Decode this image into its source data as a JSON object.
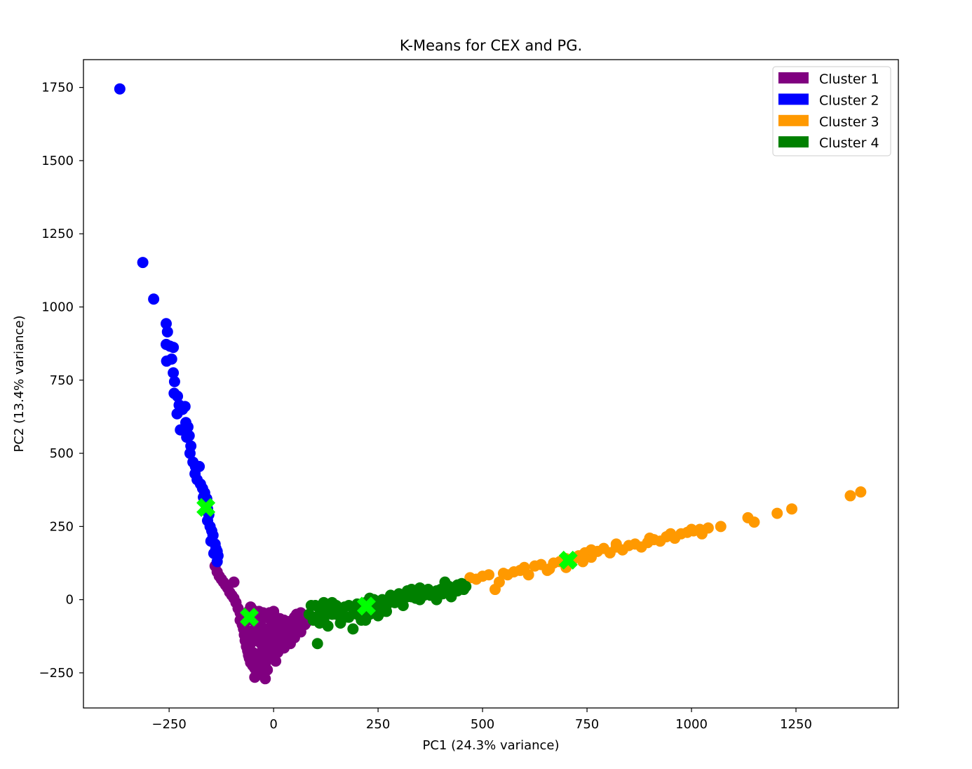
{
  "chart_data": {
    "type": "scatter",
    "title": "K-Means for CEX and PG.",
    "xlabel": "PC1 (24.3% variance)",
    "ylabel": "PC2 (13.4% variance)",
    "xlim": [
      -455,
      1495
    ],
    "ylim": [
      -370,
      1845
    ],
    "xticks": [
      -250,
      0,
      250,
      500,
      750,
      1000,
      1250
    ],
    "yticks": [
      -250,
      0,
      250,
      500,
      750,
      1000,
      1250,
      1500,
      1750
    ],
    "tick_labels": {
      "x": [
        "−250",
        "0",
        "250",
        "500",
        "750",
        "1000",
        "1250"
      ],
      "y": [
        "−250",
        "0",
        "250",
        "500",
        "750",
        "1000",
        "1250",
        "1500",
        "1750"
      ]
    },
    "grid": false,
    "legend_position": "top-right",
    "series": [
      {
        "name": "Cluster 1",
        "color": "#800080",
        "points": [
          [
            -140,
            115
          ],
          [
            -135,
            95
          ],
          [
            -130,
            80
          ],
          [
            -125,
            70
          ],
          [
            -120,
            60
          ],
          [
            -115,
            50
          ],
          [
            -110,
            40
          ],
          [
            -105,
            25
          ],
          [
            -100,
            15
          ],
          [
            -95,
            5
          ],
          [
            -95,
            60
          ],
          [
            -90,
            -10
          ],
          [
            -85,
            -30
          ],
          [
            -80,
            -45
          ],
          [
            -80,
            -70
          ],
          [
            -75,
            -85
          ],
          [
            -72,
            -100
          ],
          [
            -70,
            -120
          ],
          [
            -68,
            -140
          ],
          [
            -65,
            -160
          ],
          [
            -62,
            -175
          ],
          [
            -60,
            -190
          ],
          [
            -58,
            -200
          ],
          [
            -55,
            -215
          ],
          [
            -50,
            -225
          ],
          [
            -45,
            -235
          ],
          [
            -40,
            -245
          ],
          [
            -35,
            -255
          ],
          [
            -45,
            -265
          ],
          [
            -20,
            -270
          ],
          [
            -30,
            -180
          ],
          [
            -25,
            -200
          ],
          [
            -20,
            -220
          ],
          [
            -15,
            -150
          ],
          [
            -10,
            -170
          ],
          [
            -5,
            -190
          ],
          [
            0,
            -200
          ],
          [
            5,
            -210
          ],
          [
            10,
            -180
          ],
          [
            15,
            -160
          ],
          [
            -60,
            -60
          ],
          [
            -50,
            -70
          ],
          [
            -40,
            -80
          ],
          [
            -30,
            -90
          ],
          [
            -20,
            -100
          ],
          [
            -10,
            -110
          ],
          [
            0,
            -120
          ],
          [
            10,
            -130
          ],
          [
            20,
            -140
          ],
          [
            30,
            -120
          ],
          [
            40,
            -110
          ],
          [
            50,
            -100
          ],
          [
            60,
            -90
          ],
          [
            70,
            -80
          ],
          [
            -40,
            -50
          ],
          [
            -30,
            -55
          ],
          [
            -20,
            -60
          ],
          [
            -10,
            -65
          ],
          [
            0,
            -70
          ],
          [
            10,
            -75
          ],
          [
            20,
            -80
          ],
          [
            30,
            -85
          ],
          [
            40,
            -90
          ],
          [
            50,
            -60
          ],
          [
            60,
            -70
          ],
          [
            70,
            -55
          ],
          [
            75,
            -65
          ],
          [
            -50,
            -120
          ],
          [
            -40,
            -140
          ],
          [
            -30,
            -150
          ],
          [
            -20,
            -130
          ],
          [
            -10,
            -140
          ],
          [
            0,
            -150
          ],
          [
            10,
            -110
          ],
          [
            20,
            -100
          ],
          [
            30,
            -95
          ],
          [
            50,
            -130
          ],
          [
            40,
            -150
          ],
          [
            25,
            -165
          ],
          [
            -5,
            -90
          ],
          [
            5,
            -100
          ],
          [
            65,
            -110
          ],
          [
            -55,
            -150
          ],
          [
            -45,
            -100
          ],
          [
            -35,
            -110
          ],
          [
            -25,
            -160
          ],
          [
            -15,
            -120
          ],
          [
            -5,
            -135
          ],
          [
            15,
            -125
          ],
          [
            35,
            -135
          ],
          [
            45,
            -70
          ],
          [
            55,
            -80
          ],
          [
            65,
            -45
          ],
          [
            -65,
            -110
          ],
          [
            -70,
            -90
          ],
          [
            -50,
            -180
          ],
          [
            -40,
            -200
          ],
          [
            -30,
            -220
          ],
          [
            -15,
            -240
          ],
          [
            -60,
            -40
          ],
          [
            -55,
            -25
          ],
          [
            -50,
            -35
          ],
          [
            -45,
            -45
          ],
          [
            -35,
            -40
          ],
          [
            -25,
            -45
          ],
          [
            -15,
            -50
          ],
          [
            -5,
            -55
          ],
          [
            5,
            -60
          ],
          [
            15,
            -65
          ],
          [
            25,
            -70
          ],
          [
            35,
            -75
          ],
          [
            45,
            -80
          ],
          [
            55,
            -50
          ],
          [
            65,
            -60
          ],
          [
            75,
            -85
          ],
          [
            80,
            -75
          ],
          [
            0,
            -40
          ],
          [
            -10,
            -45
          ],
          [
            -75,
            -60
          ]
        ]
      },
      {
        "name": "Cluster 2",
        "color": "#0000ff",
        "points": [
          [
            -368,
            1745
          ],
          [
            -313,
            1152
          ],
          [
            -287,
            1027
          ],
          [
            -257,
            943
          ],
          [
            -254,
            915
          ],
          [
            -257,
            872
          ],
          [
            -248,
            866
          ],
          [
            -240,
            862
          ],
          [
            -256,
            815
          ],
          [
            -244,
            822
          ],
          [
            -240,
            775
          ],
          [
            -237,
            745
          ],
          [
            -238,
            705
          ],
          [
            -230,
            695
          ],
          [
            -226,
            665
          ],
          [
            -231,
            635
          ],
          [
            -218,
            650
          ],
          [
            -212,
            660
          ],
          [
            -210,
            605
          ],
          [
            -223,
            580
          ],
          [
            -205,
            590
          ],
          [
            -202,
            560
          ],
          [
            -208,
            555
          ],
          [
            -198,
            525
          ],
          [
            -200,
            500
          ],
          [
            -193,
            470
          ],
          [
            -187,
            455
          ],
          [
            -178,
            455
          ],
          [
            -188,
            430
          ],
          [
            -183,
            410
          ],
          [
            -175,
            395
          ],
          [
            -170,
            380
          ],
          [
            -165,
            365
          ],
          [
            -168,
            350
          ],
          [
            -160,
            345
          ],
          [
            -158,
            310
          ],
          [
            -155,
            290
          ],
          [
            -158,
            270
          ],
          [
            -152,
            250
          ],
          [
            -148,
            235
          ],
          [
            -145,
            220
          ],
          [
            -150,
            200
          ],
          [
            -140,
            190
          ],
          [
            -138,
            175
          ],
          [
            -135,
            165
          ],
          [
            -133,
            150
          ],
          [
            -143,
            158
          ],
          [
            -135,
            130
          ]
        ]
      },
      {
        "name": "Cluster 3",
        "color": "#ff9900",
        "points": [
          [
            470,
            75
          ],
          [
            485,
            70
          ],
          [
            500,
            80
          ],
          [
            515,
            85
          ],
          [
            530,
            35
          ],
          [
            540,
            60
          ],
          [
            550,
            90
          ],
          [
            560,
            85
          ],
          [
            575,
            95
          ],
          [
            590,
            100
          ],
          [
            600,
            110
          ],
          [
            610,
            85
          ],
          [
            625,
            115
          ],
          [
            640,
            120
          ],
          [
            655,
            100
          ],
          [
            670,
            125
          ],
          [
            685,
            130
          ],
          [
            700,
            110
          ],
          [
            715,
            135
          ],
          [
            730,
            150
          ],
          [
            745,
            160
          ],
          [
            760,
            145
          ],
          [
            775,
            165
          ],
          [
            790,
            175
          ],
          [
            805,
            160
          ],
          [
            820,
            180
          ],
          [
            835,
            170
          ],
          [
            850,
            185
          ],
          [
            865,
            190
          ],
          [
            880,
            180
          ],
          [
            895,
            195
          ],
          [
            910,
            205
          ],
          [
            925,
            200
          ],
          [
            940,
            215
          ],
          [
            960,
            210
          ],
          [
            975,
            225
          ],
          [
            990,
            230
          ],
          [
            1005,
            235
          ],
          [
            1020,
            240
          ],
          [
            1040,
            245
          ],
          [
            1070,
            250
          ],
          [
            1135,
            280
          ],
          [
            1150,
            265
          ],
          [
            1205,
            295
          ],
          [
            1240,
            310
          ],
          [
            1380,
            355
          ],
          [
            1405,
            368
          ],
          [
            660,
            105
          ],
          [
            700,
            140
          ],
          [
            740,
            130
          ],
          [
            760,
            170
          ],
          [
            820,
            190
          ],
          [
            900,
            210
          ],
          [
            950,
            225
          ],
          [
            1000,
            240
          ],
          [
            1025,
            225
          ]
        ]
      },
      {
        "name": "Cluster 4",
        "color": "#008000",
        "points": [
          [
            85,
            -50
          ],
          [
            90,
            -20
          ],
          [
            100,
            -60
          ],
          [
            105,
            -150
          ],
          [
            110,
            -30
          ],
          [
            120,
            -70
          ],
          [
            130,
            -40
          ],
          [
            140,
            -10
          ],
          [
            150,
            -50
          ],
          [
            160,
            -80
          ],
          [
            170,
            -25
          ],
          [
            180,
            -60
          ],
          [
            190,
            -100
          ],
          [
            200,
            -15
          ],
          [
            210,
            -40
          ],
          [
            220,
            -70
          ],
          [
            230,
            5
          ],
          [
            240,
            -30
          ],
          [
            250,
            -55
          ],
          [
            260,
            0
          ],
          [
            270,
            -20
          ],
          [
            280,
            15
          ],
          [
            290,
            -10
          ],
          [
            300,
            20
          ],
          [
            310,
            5
          ],
          [
            320,
            30
          ],
          [
            330,
            10
          ],
          [
            340,
            25
          ],
          [
            350,
            0
          ],
          [
            360,
            30
          ],
          [
            375,
            15
          ],
          [
            390,
            30
          ],
          [
            405,
            20
          ],
          [
            415,
            40
          ],
          [
            430,
            25
          ],
          [
            440,
            50
          ],
          [
            455,
            35
          ],
          [
            460,
            45
          ],
          [
            120,
            -10
          ],
          [
            140,
            -50
          ],
          [
            160,
            -30
          ],
          [
            180,
            -20
          ],
          [
            200,
            -50
          ],
          [
            220,
            -10
          ],
          [
            240,
            0
          ],
          [
            260,
            -40
          ],
          [
            280,
            -5
          ],
          [
            300,
            0
          ],
          [
            320,
            10
          ],
          [
            340,
            5
          ],
          [
            360,
            15
          ],
          [
            380,
            20
          ],
          [
            400,
            35
          ],
          [
            420,
            45
          ],
          [
            440,
            30
          ],
          [
            100,
            -20
          ],
          [
            110,
            -80
          ],
          [
            130,
            -90
          ],
          [
            150,
            -20
          ],
          [
            170,
            -60
          ],
          [
            190,
            -30
          ],
          [
            210,
            -70
          ],
          [
            230,
            -50
          ],
          [
            250,
            -10
          ],
          [
            270,
            -40
          ],
          [
            290,
            10
          ],
          [
            310,
            -20
          ],
          [
            330,
            35
          ],
          [
            350,
            40
          ],
          [
            370,
            35
          ],
          [
            390,
            0
          ],
          [
            410,
            60
          ],
          [
            425,
            10
          ],
          [
            450,
            55
          ],
          [
            95,
            -70
          ],
          [
            115,
            -45
          ]
        ]
      }
    ],
    "centroids": {
      "color": "#00ff00",
      "marker": "X",
      "points": [
        [
          -58,
          -60
        ],
        [
          -162,
          315
        ],
        [
          222,
          -22
        ],
        [
          705,
          135
        ]
      ]
    }
  }
}
